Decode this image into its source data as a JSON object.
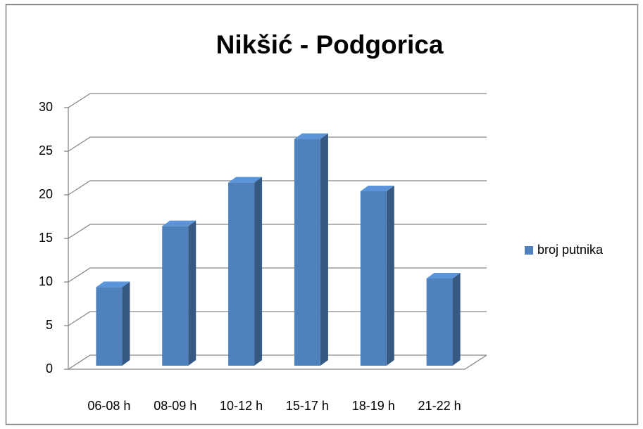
{
  "chart_data": {
    "type": "bar",
    "title": "Nikšić - Podgorica",
    "categories": [
      "06-08 h",
      "08-09 h",
      "10-12 h",
      "15-17 h",
      "18-19 h",
      "21-22 h"
    ],
    "series": [
      {
        "name": "broj putnika",
        "color": "#4f81bd",
        "values": [
          9,
          16,
          21,
          26,
          20,
          10
        ]
      }
    ],
    "ylim": [
      0,
      30
    ],
    "yticks": [
      0,
      5,
      10,
      15,
      20,
      25,
      30
    ],
    "grid": true,
    "legend": "right"
  }
}
